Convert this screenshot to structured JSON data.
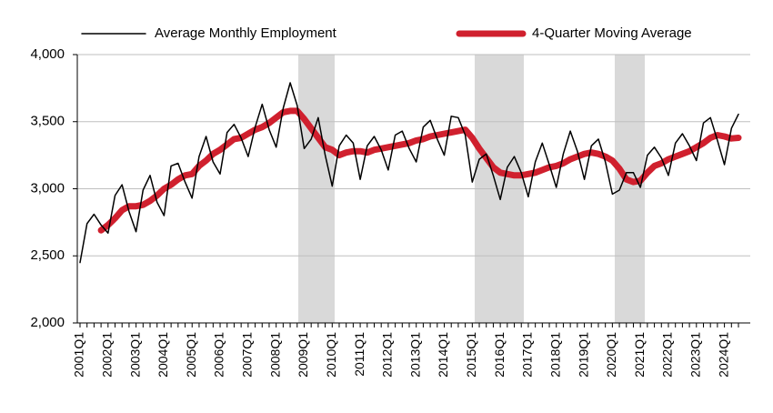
{
  "chart_data": {
    "type": "line",
    "categories": [
      "2001Q1",
      null,
      null,
      null,
      "2002Q1",
      null,
      null,
      null,
      "2003Q1",
      null,
      null,
      null,
      "2004Q1",
      null,
      null,
      null,
      "2005Q1",
      null,
      null,
      null,
      "2006Q1",
      null,
      null,
      null,
      "2007Q1",
      null,
      null,
      null,
      "2008Q1",
      null,
      null,
      null,
      "2009Q1",
      null,
      null,
      null,
      "2010Q1",
      null,
      null,
      null,
      "2011Q1",
      null,
      null,
      null,
      "2012Q1",
      null,
      null,
      null,
      "2013Q1",
      null,
      null,
      null,
      "2014Q1",
      null,
      null,
      null,
      "2015Q1",
      null,
      null,
      null,
      "2016Q1",
      null,
      null,
      null,
      "2017Q1",
      null,
      null,
      null,
      "2018Q1",
      null,
      null,
      null,
      "2019Q1",
      null,
      null,
      null,
      "2020Q1",
      null,
      null,
      null,
      "2021Q1",
      null,
      null,
      null,
      "2022Q1",
      null,
      null,
      null,
      "2023Q1",
      null,
      null,
      null,
      "2024Q1",
      null,
      null
    ],
    "series": [
      {
        "name": "Average Monthly Employment",
        "color": "#000000",
        "width": 1.5,
        "values": [
          2450,
          2740,
          2810,
          2730,
          2670,
          2950,
          3030,
          2830,
          2680,
          2990,
          3100,
          2900,
          2800,
          3170,
          3190,
          3050,
          2930,
          3240,
          3390,
          3200,
          3110,
          3420,
          3480,
          3380,
          3240,
          3460,
          3630,
          3440,
          3310,
          3600,
          3790,
          3620,
          3300,
          3370,
          3530,
          3250,
          3020,
          3320,
          3400,
          3340,
          3070,
          3320,
          3390,
          3290,
          3140,
          3400,
          3430,
          3300,
          3200,
          3460,
          3510,
          3370,
          3250,
          3540,
          3530,
          3400,
          3050,
          3220,
          3260,
          3100,
          2920,
          3160,
          3240,
          3120,
          2940,
          3200,
          3340,
          3180,
          3010,
          3260,
          3430,
          3280,
          3070,
          3320,
          3370,
          3200,
          2960,
          2990,
          3120,
          3120,
          3010,
          3250,
          3310,
          3230,
          3100,
          3340,
          3410,
          3320,
          3210,
          3490,
          3530,
          3360,
          3180,
          3450,
          3555
        ]
      },
      {
        "name": "4-Quarter Moving Average",
        "color": "#d0202e",
        "width": 7,
        "values": [
          null,
          null,
          null,
          2690,
          2730,
          2780,
          2840,
          2870,
          2870,
          2880,
          2910,
          2950,
          3000,
          3030,
          3070,
          3100,
          3110,
          3170,
          3210,
          3260,
          3290,
          3330,
          3370,
          3380,
          3410,
          3440,
          3460,
          3490,
          3530,
          3570,
          3580,
          3580,
          3520,
          3450,
          3380,
          3310,
          3290,
          3250,
          3270,
          3280,
          3280,
          3270,
          3290,
          3300,
          3310,
          3320,
          3330,
          3340,
          3360,
          3370,
          3390,
          3400,
          3410,
          3420,
          3430,
          3440,
          3380,
          3300,
          3230,
          3160,
          3120,
          3110,
          3100,
          3100,
          3110,
          3120,
          3140,
          3160,
          3170,
          3190,
          3220,
          3240,
          3260,
          3270,
          3260,
          3240,
          3210,
          3150,
          3070,
          3050,
          3060,
          3120,
          3170,
          3190,
          3220,
          3240,
          3260,
          3280,
          3310,
          3340,
          3380,
          3400,
          3390,
          3375,
          3380
        ]
      }
    ],
    "ylim": [
      2000,
      4000
    ],
    "yticks": [
      {
        "value": 2000,
        "label": "2,000"
      },
      {
        "value": 2500,
        "label": "2,500"
      },
      {
        "value": 3000,
        "label": "3,000"
      },
      {
        "value": 3500,
        "label": "3,500"
      },
      {
        "value": 4000,
        "label": "4,000"
      }
    ],
    "grid": true,
    "legend": "top"
  }
}
